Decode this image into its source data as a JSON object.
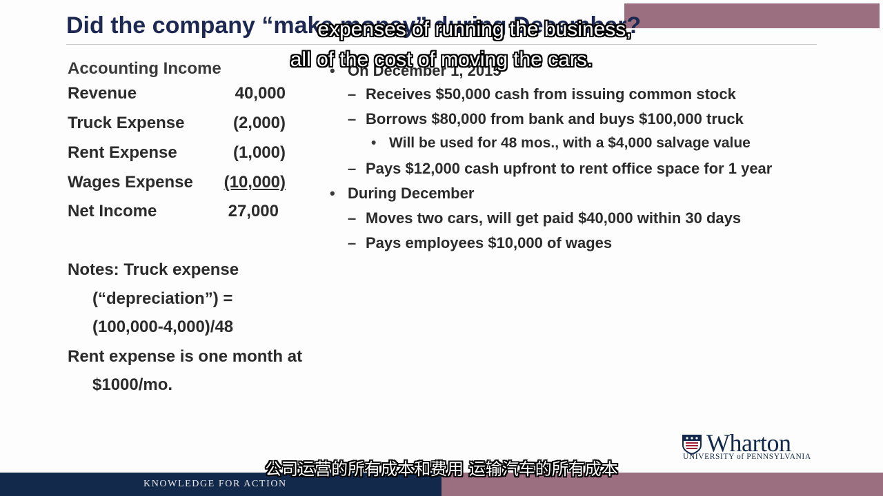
{
  "slide": {
    "title": "Did the company “make money” during December?"
  },
  "income_statement": {
    "heading": "Accounting Income",
    "rows": [
      {
        "label": "Revenue",
        "amount": "40,000"
      },
      {
        "label": "Truck Expense",
        "amount": "(2,000)"
      },
      {
        "label": "Rent Expense",
        "amount": "(1,000)"
      },
      {
        "label": "Wages Expense",
        "amount": "(10,000)"
      },
      {
        "label": "Net Income",
        "amount": "27,000"
      }
    ]
  },
  "notes": {
    "line1": "Notes: Truck expense",
    "line2": "(“depreciation”) =",
    "line3": "(100,000-4,000)/48",
    "line4": "Rent expense is one month at",
    "line5": "$1000/mo."
  },
  "bullets": {
    "b1": "On December 1, 2015",
    "b1_1": "Receives $50,000 cash from issuing common stock",
    "b1_2": "Borrows $80,000 from bank and buys $100,000 truck",
    "b1_2_1": "Will be used for 48 mos., with a $4,000 salvage value",
    "b1_3": "Pays $12,000 cash upfront to rent office space for 1 year",
    "b2": "During December",
    "b2_1": "Moves two cars, will get paid $40,000 within 30 days",
    "b2_2": "Pays employees $10,000 of wages"
  },
  "markers": {
    "dot": "•",
    "dash": "–"
  },
  "subtitles": {
    "en_line1": "expenses of running the business,",
    "en_line2": "all of the cost of moving the cars.",
    "cn": "公司运营的所有成本和费用 运输汽车的所有成本"
  },
  "logo": {
    "word": "Wharton",
    "sub": "UNIVERSITY of PENNSYLVANIA",
    "icon": "penn-shield-icon"
  },
  "footer": {
    "tagline": "KNOWLEDGE FOR ACTION"
  },
  "colors": {
    "title": "#1d2951",
    "navy": "#13294b",
    "mauve": "#9b6f80"
  }
}
